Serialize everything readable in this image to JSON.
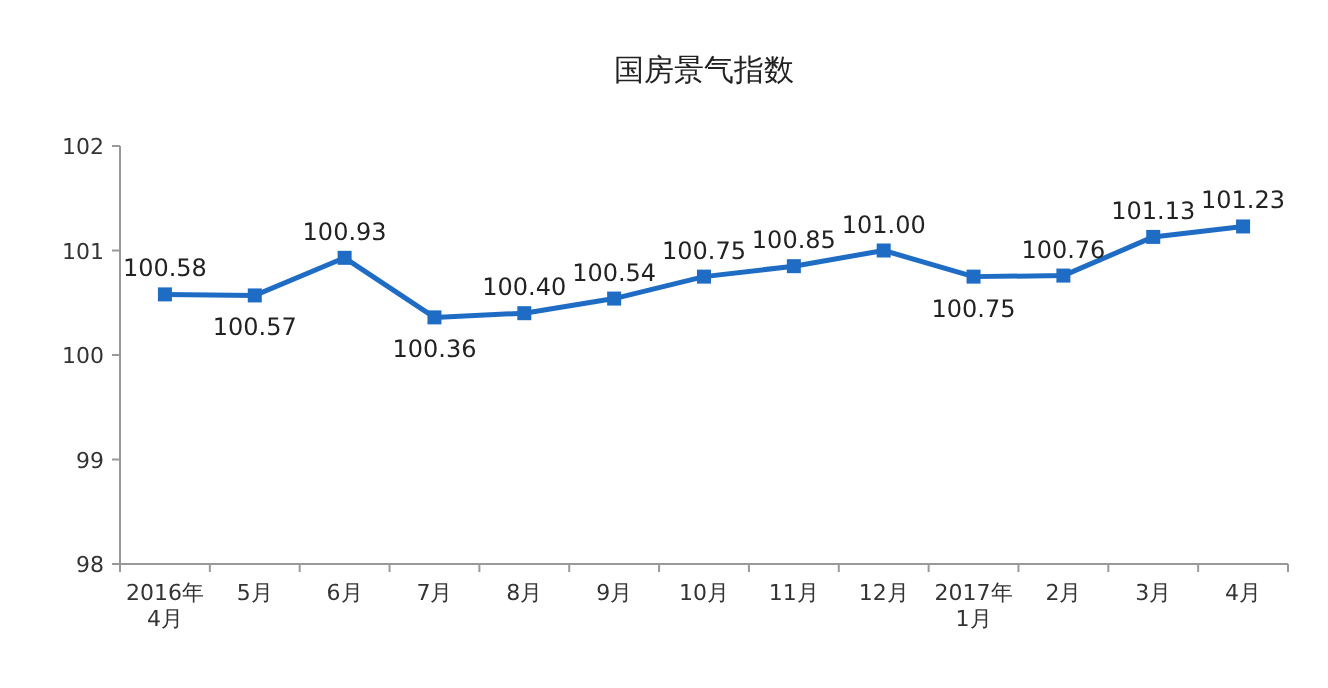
{
  "chart_data": {
    "type": "line",
    "title": "国房景气指数",
    "categories": [
      "2016年\n4月",
      "5月",
      "6月",
      "7月",
      "8月",
      "9月",
      "10月",
      "11月",
      "12月",
      "2017年\n1月",
      "2月",
      "3月",
      "4月"
    ],
    "series": [
      {
        "color": "#1f6cc4",
        "values": [
          100.58,
          100.57,
          100.93,
          100.36,
          100.4,
          100.54,
          100.75,
          100.85,
          101.0,
          100.75,
          100.76,
          101.13,
          101.23
        ],
        "value_labels": [
          "100.58",
          "100.57",
          "100.93",
          "100.36",
          "100.40",
          "100.54",
          "100.75",
          "100.85",
          "101.00",
          "100.75",
          "100.76",
          "101.13",
          "101.23"
        ]
      }
    ],
    "ylim": [
      98,
      102
    ],
    "yticks": [
      98,
      99,
      100,
      101,
      102
    ],
    "marker": "square",
    "line_style": "solid",
    "grid": false
  }
}
